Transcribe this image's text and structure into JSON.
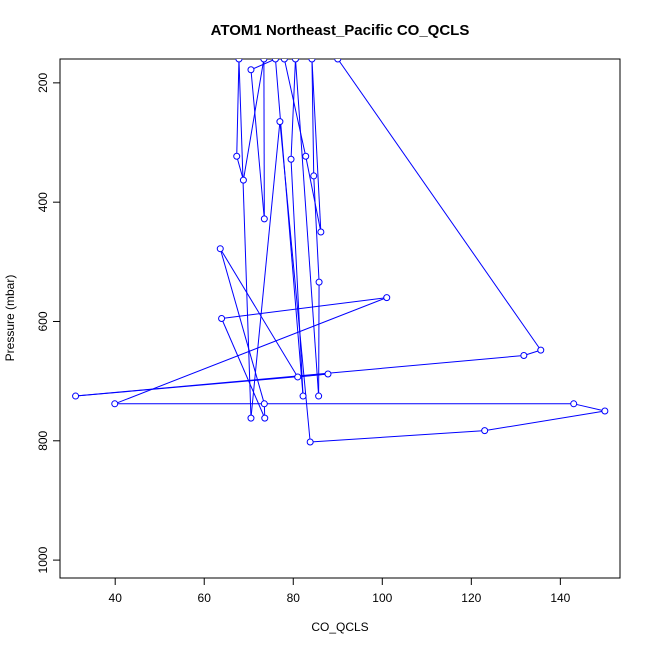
{
  "chart_data": {
    "type": "line",
    "title": "ATOM1 Northeast_Pacific CO_QCLS",
    "xlabel": "CO_QCLS",
    "ylabel": "Pressure (mbar)",
    "xlim": [
      27.6,
      153.4
    ],
    "ylim": [
      160,
      1030
    ],
    "y_reversed": true,
    "x_ticks": [
      40,
      60,
      80,
      100,
      120,
      140
    ],
    "y_ticks": [
      200,
      400,
      600,
      800,
      1000
    ],
    "x_tick_labels": [
      "40",
      "60",
      "80",
      "100",
      "120",
      "140"
    ],
    "y_tick_labels": [
      "200",
      "400",
      "600",
      "800",
      "1000"
    ],
    "series": [
      {
        "color": "#0000ff",
        "marker": "open-circle",
        "points": [
          [
            90.0,
            160
          ],
          [
            135.6,
            648
          ],
          [
            131.8,
            657
          ],
          [
            31.1,
            725
          ],
          [
            87.8,
            688
          ],
          [
            81.0,
            693
          ],
          [
            63.6,
            478
          ],
          [
            73.5,
            738
          ],
          [
            73.6,
            762
          ],
          [
            63.9,
            595
          ],
          [
            101.0,
            560
          ],
          [
            39.9,
            738
          ],
          [
            143.0,
            738
          ],
          [
            150.0,
            750
          ],
          [
            123.0,
            783
          ],
          [
            83.8,
            802
          ],
          [
            77.0,
            265
          ],
          [
            70.5,
            762
          ],
          [
            67.8,
            160
          ],
          [
            67.3,
            323
          ],
          [
            68.8,
            363
          ],
          [
            73.4,
            160
          ],
          [
            73.5,
            428
          ],
          [
            70.5,
            178
          ],
          [
            76.0,
            160
          ],
          [
            82.2,
            725
          ],
          [
            79.5,
            328
          ],
          [
            80.5,
            160
          ],
          [
            85.7,
            725
          ],
          [
            85.8,
            534
          ],
          [
            84.6,
            356
          ],
          [
            84.2,
            160
          ],
          [
            86.2,
            450
          ],
          [
            82.8,
            323
          ],
          [
            78.0,
            160
          ]
        ]
      }
    ]
  }
}
